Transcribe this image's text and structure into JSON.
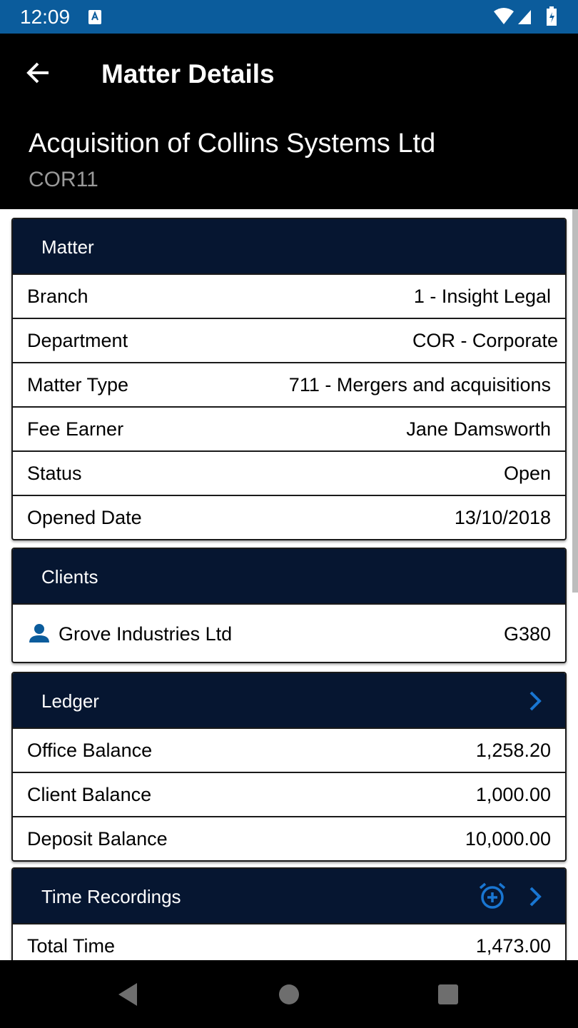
{
  "status_bar": {
    "time": "12:09"
  },
  "app_bar": {
    "title": "Matter Details"
  },
  "matter_header": {
    "name": "Acquisition of Collins Systems Ltd",
    "code": "COR11"
  },
  "sections": [
    {
      "title": "Matter",
      "rows": [
        [
          "Branch",
          "1 - Insight Legal"
        ],
        [
          "Department",
          "COR - Corporate"
        ],
        [
          "Matter Type",
          "711 - Mergers and acquisitions"
        ],
        [
          "Fee Earner",
          "Jane Damsworth"
        ],
        [
          "Status",
          "Open"
        ],
        [
          "Opened Date",
          "13/10/2018"
        ]
      ]
    },
    {
      "title": "Clients",
      "rows": [
        [
          "Grove Industries Ltd",
          "G380"
        ]
      ]
    },
    {
      "title": "Ledger",
      "rows": [
        [
          "Office Balance",
          "1,258.20"
        ],
        [
          "Client Balance",
          "1,000.00"
        ],
        [
          "Deposit Balance",
          "10,000.00"
        ]
      ]
    },
    {
      "title": "Time Recordings",
      "rows": [
        [
          "Total Time",
          "1,473.00"
        ]
      ]
    }
  ]
}
